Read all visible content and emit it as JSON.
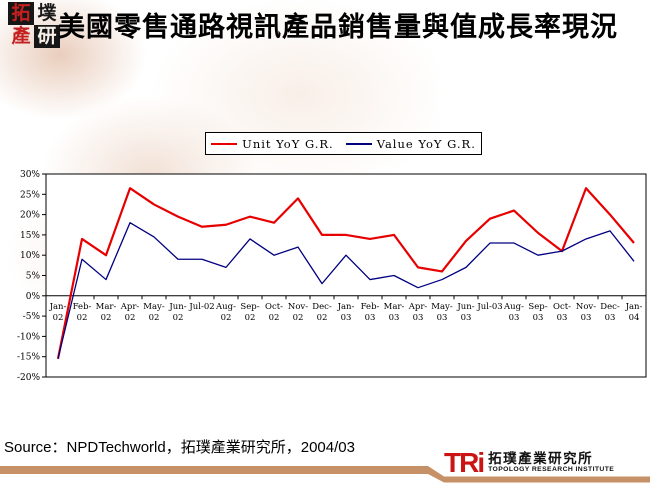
{
  "header": {
    "title": "美國零售通路視訊產品銷售量與值成長率現況",
    "seal_logo": {
      "cells": [
        {
          "char": "拓",
          "fg": "#c42020",
          "bg": "#161616"
        },
        {
          "char": "墣",
          "fg": "#1a1a1a",
          "bg": "transparent"
        },
        {
          "char": "產",
          "fg": "#c42020",
          "bg": "transparent"
        },
        {
          "char": "研",
          "fg": "#f5efe6",
          "bg": "#161616"
        }
      ]
    }
  },
  "chart_data": {
    "type": "line",
    "title": "",
    "xlabel": "",
    "ylabel": "",
    "ylim": [
      -20,
      30
    ],
    "ytick_step": 5,
    "ytick_suffix": "%",
    "grid": false,
    "legend_position": "top",
    "categories": [
      "Jan-02",
      "Feb-02",
      "Mar-02",
      "Apr-02",
      "May-02",
      "Jun-02",
      "Jul-02",
      "Aug-02",
      "Sep-02",
      "Oct-02",
      "Nov-02",
      "Dec-02",
      "Jan-03",
      "Feb-03",
      "Mar-03",
      "Apr-03",
      "May-03",
      "Jun-03",
      "Jul-03",
      "Aug-03",
      "Sep-03",
      "Oct-03",
      "Nov-03",
      "Dec-03",
      "Jan-04"
    ],
    "series": [
      {
        "name": "Unit YoY G.R.",
        "color": "#e60000",
        "width": 2.2,
        "values": [
          -15.5,
          14,
          10,
          26.5,
          22.5,
          19.5,
          17,
          17.5,
          19.5,
          18,
          24,
          15,
          15,
          14,
          15,
          7,
          6,
          13.5,
          19,
          21,
          15.5,
          11,
          26.5,
          20,
          13
        ]
      },
      {
        "name": "Value YoY G.R.",
        "color": "#000080",
        "width": 1.3,
        "values": [
          -15.5,
          9,
          4,
          18,
          14.5,
          9,
          9,
          7,
          14,
          10,
          12,
          3,
          10,
          4,
          5,
          2,
          4,
          7,
          13,
          13,
          10,
          11,
          14,
          16,
          8.5
        ]
      }
    ]
  },
  "footer": {
    "source": "Source：NPDTechworld，拓璞產業研究所，2004/03",
    "bar_color": "#c79167",
    "logo": {
      "acronym": "TRi",
      "chinese": "拓璞產業研究所",
      "english": "TOPOLOGY RESEARCH INSTITUTE"
    }
  }
}
